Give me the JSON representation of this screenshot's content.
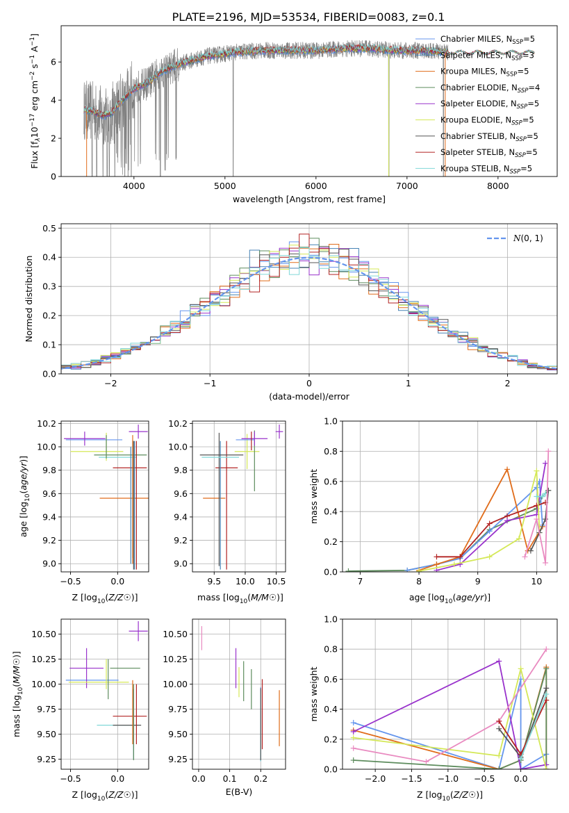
{
  "figure": {
    "title": "PLATE=2196, MJD=53534, FIBERID=0083, z=0.1"
  },
  "series": [
    {
      "key": "cm",
      "name": "Chabrier MILES, N_SSP=5",
      "label_main": "Chabrier MILES, N",
      "label_sub": "SSP",
      "label_tail": "=5",
      "color": "#6495ed"
    },
    {
      "key": "sm",
      "name": "Salpeter MILES, N_SSP=3",
      "label_main": "Salpeter MILES, N",
      "label_sub": "SSP",
      "label_tail": "=3",
      "color": "#4682b4"
    },
    {
      "key": "km",
      "name": "Kroupa MILES, N_SSP=5",
      "label_main": "Kroupa MILES, N",
      "label_sub": "SSP",
      "label_tail": "=5",
      "color": "#e06c1a"
    },
    {
      "key": "ce",
      "name": "Chabrier ELODIE, N_SSP=4",
      "label_main": "Chabrier ELODIE, N",
      "label_sub": "SSP",
      "label_tail": "=4",
      "color": "#5d8c5d"
    },
    {
      "key": "se",
      "name": "Salpeter ELODIE, N_SSP=5",
      "label_main": "Salpeter ELODIE, N",
      "label_sub": "SSP",
      "label_tail": "=5",
      "color": "#9932cc"
    },
    {
      "key": "ke",
      "name": "Kroupa ELODIE, N_SSP=5",
      "label_main": "Kroupa ELODIE, N",
      "label_sub": "SSP",
      "label_tail": "=5",
      "color": "#d4e857"
    },
    {
      "key": "cs",
      "name": "Chabrier STELIB, N_SSP=5",
      "label_main": "Chabrier STELIB, N",
      "label_sub": "SSP",
      "label_tail": "=5",
      "color": "#555555"
    },
    {
      "key": "ss",
      "name": "Salpeter STELIB, N_SSP=5",
      "label_main": "Salpeter STELIB, N",
      "label_sub": "SSP",
      "label_tail": "=5",
      "color": "#b22222"
    },
    {
      "key": "ks",
      "name": "Kroupa STELIB, N_SSP=5",
      "label_main": "Kroupa STELIB, N",
      "label_sub": "SSP",
      "label_tail": "=5",
      "color": "#80d8d8"
    }
  ],
  "chart_data": [
    {
      "id": "spectrum",
      "type": "line",
      "xlabel": "wavelength [Angstrom, rest frame]",
      "ylabel": "Flux [fλ 10^-17 erg cm^-2 s^-1 A^-1]",
      "ylabel_parts": {
        "a": "Flux [f",
        "b": "λ",
        "c": "10",
        "d": "−17",
        "e": " erg cm",
        "f": "−2",
        "g": " s",
        "h": "−1",
        "i": " A",
        "j": "−1",
        "k": "]"
      },
      "xlim": [
        3200,
        8650
      ],
      "ylim": [
        0,
        7.9
      ],
      "xticks": [
        4000,
        5000,
        6000,
        7000,
        8000
      ],
      "yticks": [
        0,
        2,
        4,
        6
      ],
      "legend": "top-right",
      "data_color": "#808080",
      "continuum": {
        "x": [
          3450,
          3550,
          3650,
          3750,
          3850,
          4000,
          4150,
          4300,
          4500,
          4800,
          5100,
          5400,
          5700,
          6000,
          6300,
          6600,
          6900,
          7200,
          7450
        ],
        "y": [
          3.5,
          3.4,
          3.2,
          3.3,
          3.9,
          4.6,
          4.9,
          5.5,
          5.9,
          6.3,
          6.5,
          6.6,
          6.6,
          6.6,
          6.7,
          6.7,
          6.6,
          6.6,
          6.5
        ]
      },
      "observed_range": [
        3450,
        7450
      ],
      "model_range": [
        3450,
        8400
      ],
      "deep_absorption_lines": [
        3540,
        3590,
        3660,
        3705,
        3730,
        3790,
        3860,
        3900,
        3935,
        3970,
        4290,
        5090,
        6800,
        7400
      ]
    },
    {
      "id": "residuals",
      "type": "histogram",
      "xlabel": "(data-model)/error",
      "ylabel": "Normed distribution",
      "xlim": [
        -2.5,
        2.5
      ],
      "ylim": [
        0,
        0.515
      ],
      "xticks": [
        -2,
        -1,
        0,
        1,
        2
      ],
      "yticks": [
        0.0,
        0.1,
        0.2,
        0.3,
        0.4,
        0.5
      ],
      "bin_width": 0.1,
      "gaussian": {
        "label": "N(0,1)",
        "label_main": "N",
        "label_tail": "(0, 1)",
        "mean": 0,
        "sigma": 1,
        "color": "#6495ed"
      },
      "legend": "top-right"
    },
    {
      "id": "age_vs_Z",
      "type": "scatter",
      "xlabel": "Z [log10(Z/Z☉)]",
      "ylabel": "age [log10(age/yr)]",
      "xlim": [
        -0.6,
        0.33
      ],
      "ylim": [
        8.93,
        10.22
      ],
      "xticks": [
        -0.5,
        0.0
      ],
      "yticks": [
        9.0,
        9.2,
        9.4,
        9.6,
        9.8,
        10.0,
        10.2
      ],
      "points": [
        {
          "series": "km",
          "x": 0.08,
          "xerr": 0.27,
          "y": 9.56,
          "yerr": 0.0
        },
        {
          "series": "ss",
          "x": 0.13,
          "xerr": 0.18,
          "y": 9.82,
          "yerr": 0.0
        },
        {
          "series": "cm",
          "x": -0.25,
          "xerr": 0.3,
          "y": 10.06,
          "yerr": 0.0
        },
        {
          "series": "se",
          "x": -0.35,
          "xerr": 0.22,
          "y": 10.07,
          "yerr": 0.06
        },
        {
          "series": "ke",
          "x": -0.22,
          "xerr": 0.28,
          "y": 9.96,
          "yerr": 0.0
        },
        {
          "series": "ce",
          "x": 0.03,
          "xerr": 0.28,
          "y": 9.93,
          "yerr": 0.0
        },
        {
          "series": "ks",
          "x": 0.0,
          "xerr": 0.2,
          "y": 9.91,
          "yerr": 0.0
        },
        {
          "series": "cs",
          "x": 0.17,
          "xerr": 0.0,
          "y": 9.5,
          "yerr": 0.55
        },
        {
          "series": "sm",
          "x": 0.18,
          "xerr": 0.0,
          "y": 9.5,
          "yerr": 0.55
        },
        {
          "series": "ce",
          "x": 0.16,
          "xerr": 0.0,
          "y": 9.55,
          "yerr": 0.5
        },
        {
          "series": "ss",
          "x": 0.2,
          "xerr": 0.0,
          "y": 9.5,
          "yerr": 0.55
        },
        {
          "series": "ke",
          "x": -0.12,
          "xerr": 0.0,
          "y": 10.0,
          "yerr": 0.12
        },
        {
          "series": "ce",
          "x": -0.12,
          "xerr": 0.0,
          "y": 10.0,
          "yerr": 0.1
        },
        {
          "series": "km",
          "x": 0.16,
          "xerr": 0.0,
          "y": 9.55,
          "yerr": 0.55
        },
        {
          "series": "sm",
          "x": 0.14,
          "xerr": 0.0,
          "y": 9.5,
          "yerr": 0.5
        },
        {
          "series": "se",
          "x": 0.22,
          "xerr": 0.1,
          "y": 10.13,
          "yerr": 0.06
        }
      ]
    },
    {
      "id": "age_vs_mass",
      "type": "scatter",
      "xlabel": "mass [log10(M/M☉)]",
      "ylabel": "",
      "xlim": [
        9.15,
        10.65
      ],
      "ylim": [
        8.93,
        10.22
      ],
      "xticks": [
        9.5,
        10.0,
        10.5
      ],
      "yticks": [
        9.0,
        9.2,
        9.4,
        9.6,
        9.8,
        10.0,
        10.2
      ],
      "points": [
        {
          "series": "km",
          "x": 9.5,
          "xerr": 0.18,
          "y": 9.56,
          "yerr": 0.0
        },
        {
          "series": "ss",
          "x": 9.7,
          "xerr": 0.0,
          "y": 9.5,
          "yerr": 0.55
        },
        {
          "series": "ss",
          "x": 9.7,
          "xerr": 0.18,
          "y": 9.82,
          "yerr": 0.0
        },
        {
          "series": "cs",
          "x": 9.58,
          "xerr": 0.0,
          "y": 9.55,
          "yerr": 0.57
        },
        {
          "series": "sm",
          "x": 9.6,
          "xerr": 0.0,
          "y": 9.5,
          "yerr": 0.55
        },
        {
          "series": "cs",
          "x": 9.62,
          "xerr": 0.35,
          "y": 9.93,
          "yerr": 0.0
        },
        {
          "series": "ks",
          "x": 9.6,
          "xerr": 0.3,
          "y": 9.91,
          "yerr": 0.0
        },
        {
          "series": "ke",
          "x": 10.03,
          "xerr": 0.2,
          "y": 9.96,
          "yerr": 0.15
        },
        {
          "series": "ce",
          "x": 10.15,
          "xerr": 0.0,
          "y": 9.88,
          "yerr": 0.26
        },
        {
          "series": "se",
          "x": 10.15,
          "xerr": 0.21,
          "y": 10.07,
          "yerr": 0.06
        },
        {
          "series": "cm",
          "x": 10.0,
          "xerr": 0.15,
          "y": 10.06,
          "yerr": 0.0
        },
        {
          "series": "ss",
          "x": 10.1,
          "xerr": 0.0,
          "y": 10.05,
          "yerr": 0.08
        },
        {
          "series": "se",
          "x": 10.55,
          "xerr": 0.06,
          "y": 10.13,
          "yerr": 0.06
        }
      ]
    },
    {
      "id": "weight_vs_age",
      "type": "line",
      "xlabel": "age [log10(age/yr)]",
      "ylabel": "mass weight",
      "xlim": [
        6.7,
        10.35
      ],
      "ylim": [
        0,
        1.0
      ],
      "xticks": [
        7,
        8,
        9,
        10
      ],
      "yticks": [
        0.0,
        0.2,
        0.4,
        0.6,
        0.8,
        1.0
      ],
      "series": [
        {
          "series": "ce",
          "x": [
            6.8,
            7.8,
            8.3,
            8.7,
            9.2,
            10.0,
            10.1,
            10.2
          ],
          "y": [
            0.005,
            0.01,
            0.05,
            0.09,
            0.28,
            0.42,
            0.5,
            0.54
          ]
        },
        {
          "series": "cm",
          "x": [
            7.8,
            8.3,
            8.7,
            9.2,
            10.0,
            10.05,
            10.1
          ],
          "y": [
            0.01,
            0.05,
            0.09,
            0.27,
            0.56,
            0.6,
            0.31
          ]
        },
        {
          "series": "km",
          "x": [
            8.0,
            8.3,
            8.7,
            9.5,
            9.85,
            10.1
          ],
          "y": [
            0.01,
            0.05,
            0.1,
            0.68,
            0.14,
            0.3
          ]
        },
        {
          "series": "ss",
          "x": [
            8.3,
            8.7,
            9.2,
            9.5,
            10.0,
            10.15
          ],
          "y": [
            0.1,
            0.1,
            0.32,
            0.37,
            0.44,
            0.46
          ]
        },
        {
          "series": "se",
          "x": [
            8.3,
            8.7,
            9.5,
            10.0,
            10.15
          ],
          "y": [
            0.01,
            0.05,
            0.34,
            0.38,
            0.72
          ]
        },
        {
          "series": "ke",
          "x": [
            8.0,
            8.6,
            9.2,
            9.7,
            10.0,
            10.05
          ],
          "y": [
            0.005,
            0.05,
            0.1,
            0.22,
            0.67,
            0.26
          ]
        },
        {
          "series": "cs",
          "x": [
            9.9,
            10.05,
            10.15,
            10.2
          ],
          "y": [
            0.14,
            0.26,
            0.35,
            0.54
          ]
        },
        {
          "series": "ks",
          "x": [
            10.0,
            10.1,
            10.15
          ],
          "y": [
            0.5,
            0.5,
            0.52
          ]
        },
        {
          "series": "pink",
          "x": [
            9.8,
            10.0,
            10.15,
            10.2
          ],
          "y": [
            0.1,
            0.35,
            0.06,
            0.8
          ]
        }
      ]
    },
    {
      "id": "mass_vs_Z",
      "type": "scatter",
      "xlabel": "Z [log10(Z/Z☉)]",
      "ylabel": "mass [log10(M/M☉)]",
      "xlim": [
        -0.6,
        0.33
      ],
      "ylim": [
        9.15,
        10.65
      ],
      "xticks": [
        -0.5,
        0.0
      ],
      "yticks": [
        9.25,
        9.5,
        9.75,
        10.0,
        10.25,
        10.5
      ],
      "points": [
        {
          "series": "cm",
          "x": -0.27,
          "xerr": 0.28,
          "y": 10.04,
          "yerr": 0.0
        },
        {
          "series": "se",
          "x": -0.33,
          "xerr": 0.18,
          "y": 10.16,
          "yerr": 0.2
        },
        {
          "series": "ke",
          "x": -0.2,
          "xerr": 0.32,
          "y": 10.02,
          "yerr": 0.0
        },
        {
          "series": "ce",
          "x": -0.1,
          "xerr": 0.0,
          "y": 10.05,
          "yerr": 0.2
        },
        {
          "series": "ke",
          "x": -0.12,
          "xerr": 0.0,
          "y": 10.1,
          "yerr": 0.15
        },
        {
          "series": "ce",
          "x": 0.08,
          "xerr": 0.16,
          "y": 10.16,
          "yerr": 0.0
        },
        {
          "series": "ss",
          "x": 0.13,
          "xerr": 0.18,
          "y": 9.68,
          "yerr": 0.0
        },
        {
          "series": "ks",
          "x": 0.0,
          "xerr": 0.22,
          "y": 9.59,
          "yerr": 0.0
        },
        {
          "series": "cs",
          "x": 0.1,
          "xerr": 0.15,
          "y": 9.59,
          "yerr": 0.0
        },
        {
          "series": "sm",
          "x": 0.17,
          "xerr": 0.0,
          "y": 9.6,
          "yerr": 0.35
        },
        {
          "series": "ce",
          "x": 0.17,
          "xerr": 0.0,
          "y": 9.62,
          "yerr": 0.38
        },
        {
          "series": "ss",
          "x": 0.2,
          "xerr": 0.0,
          "y": 9.7,
          "yerr": 0.3
        },
        {
          "series": "km",
          "x": 0.16,
          "xerr": 0.0,
          "y": 9.72,
          "yerr": 0.32
        },
        {
          "series": "se",
          "x": 0.22,
          "xerr": 0.1,
          "y": 10.53,
          "yerr": 0.1
        }
      ]
    },
    {
      "id": "mass_vs_EBV",
      "type": "scatter",
      "xlabel": "E(B-V)",
      "ylabel": "",
      "xlim": [
        -0.02,
        0.28
      ],
      "ylim": [
        9.15,
        10.65
      ],
      "xticks": [
        0.0,
        0.1,
        0.2
      ],
      "yticks": [
        9.25,
        9.5,
        9.75,
        10.0,
        10.25,
        10.5
      ],
      "points": [
        {
          "series": "pink",
          "x": 0.01,
          "yerr": 0.12,
          "y": 10.46
        },
        {
          "series": "se",
          "x": 0.12,
          "yerr": 0.2,
          "y": 10.16
        },
        {
          "series": "ke",
          "x": 0.13,
          "yerr": 0.15,
          "y": 10.02
        },
        {
          "series": "ce",
          "x": 0.145,
          "yerr": 0.2,
          "y": 10.03
        },
        {
          "series": "ce",
          "x": 0.17,
          "yerr": 0.2,
          "y": 9.95
        },
        {
          "series": "cm",
          "x": 0.2,
          "yerr": 0.37,
          "y": 9.6
        },
        {
          "series": "ks",
          "x": 0.2,
          "yerr": 0.35,
          "y": 9.58
        },
        {
          "series": "cs",
          "x": 0.2,
          "yerr": 0.36,
          "y": 9.6
        },
        {
          "series": "ss",
          "x": 0.205,
          "yerr": 0.35,
          "y": 9.7
        },
        {
          "series": "km",
          "x": 0.26,
          "yerr": 0.28,
          "y": 9.66
        }
      ]
    },
    {
      "id": "weight_vs_Z",
      "type": "line",
      "xlabel": "Z [log10(Z/Z☉)]",
      "ylabel": "mass weight",
      "xlim": [
        -2.45,
        0.5
      ],
      "ylim": [
        0,
        1.0
      ],
      "xticks": [
        -2.0,
        -1.5,
        -1.0,
        -0.5,
        0.0
      ],
      "yticks": [
        0.0,
        0.2,
        0.4,
        0.6,
        0.8,
        1.0
      ],
      "series": [
        {
          "series": "cm",
          "x": [
            -2.3,
            -0.3,
            0.0,
            0.0,
            0.35
          ],
          "y": [
            0.31,
            0.0,
            0.6,
            0.0,
            0.1
          ]
        },
        {
          "series": "km",
          "x": [
            -2.3,
            -0.3,
            0.0,
            0.35,
            0.35
          ],
          "y": [
            0.26,
            0.0,
            0.06,
            0.68,
            0.0
          ]
        },
        {
          "series": "ce",
          "x": [
            -2.3,
            -0.3,
            0.0,
            0.35,
            0.35
          ],
          "y": [
            0.06,
            0.0,
            0.06,
            0.67,
            0.0
          ]
        },
        {
          "series": "se",
          "x": [
            -2.3,
            -0.3,
            0.0,
            0.35
          ],
          "y": [
            0.25,
            0.72,
            0.0,
            0.03
          ]
        },
        {
          "series": "ke",
          "x": [
            -2.3,
            -0.3,
            0.0,
            0.35
          ],
          "y": [
            0.21,
            0.09,
            0.67,
            0.0
          ]
        },
        {
          "series": "pink",
          "x": [
            -2.3,
            -1.3,
            -0.3,
            0.35
          ],
          "y": [
            0.14,
            0.05,
            0.32,
            0.8
          ]
        },
        {
          "series": "cs",
          "x": [
            -0.3,
            0.0,
            0.35
          ],
          "y": [
            0.27,
            0.08,
            0.54
          ]
        },
        {
          "series": "ss",
          "x": [
            -0.3,
            0.0,
            0.35
          ],
          "y": [
            0.32,
            0.1,
            0.46
          ]
        },
        {
          "series": "ks",
          "x": [
            0.0,
            0.35
          ],
          "y": [
            0.07,
            0.5
          ]
        }
      ]
    }
  ]
}
